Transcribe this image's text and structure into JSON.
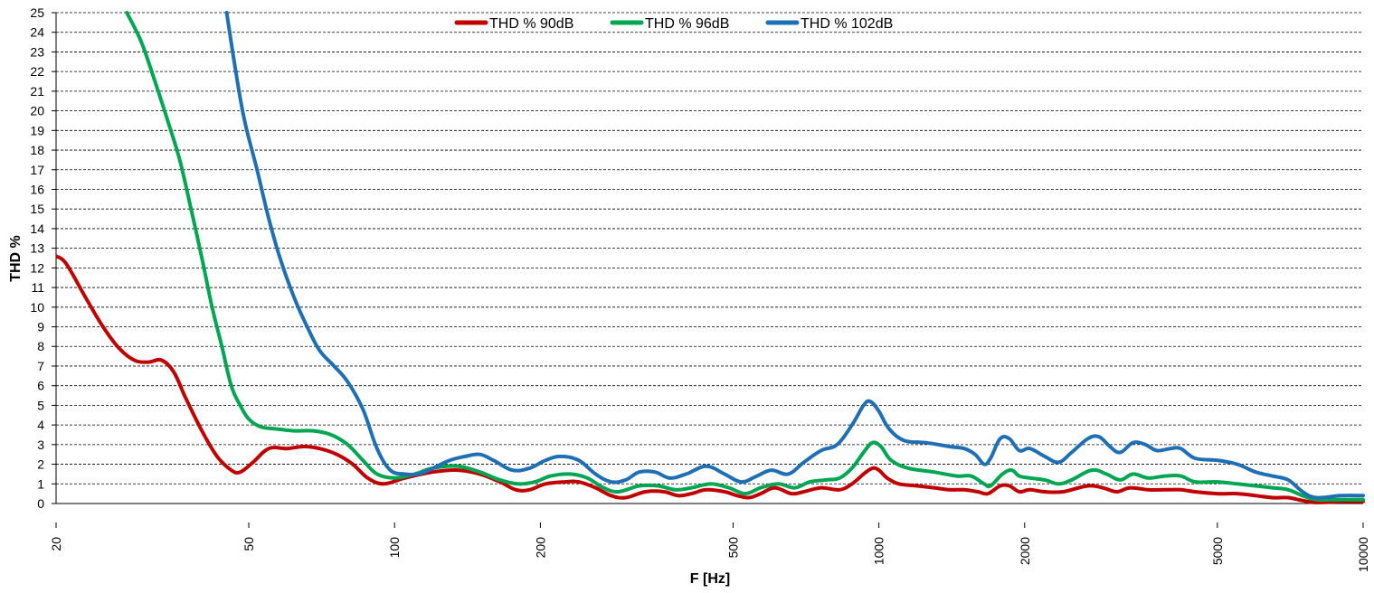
{
  "chart_data": {
    "type": "line",
    "xlabel": "F [Hz]",
    "ylabel": "THD %",
    "xscale": "log",
    "xlim": [
      20,
      10000
    ],
    "ylim": [
      0,
      25
    ],
    "grid": true,
    "legend_position": "top-center",
    "x_ticks": [
      20,
      50,
      100,
      200,
      500,
      1000,
      2000,
      5000,
      10000
    ],
    "y_ticks": [
      0,
      1,
      2,
      3,
      4,
      5,
      6,
      7,
      8,
      9,
      10,
      11,
      12,
      13,
      14,
      15,
      16,
      17,
      18,
      19,
      20,
      21,
      22,
      23,
      24,
      25
    ],
    "series": [
      {
        "name": "THD % 90dB",
        "color": "#c00000",
        "points": [
          [
            20,
            12.6
          ],
          [
            21,
            12.2
          ],
          [
            23,
            10.5
          ],
          [
            25,
            9.0
          ],
          [
            27,
            7.9
          ],
          [
            29,
            7.3
          ],
          [
            31,
            7.2
          ],
          [
            33,
            7.3
          ],
          [
            35,
            6.7
          ],
          [
            37,
            5.4
          ],
          [
            40,
            3.7
          ],
          [
            43,
            2.4
          ],
          [
            46,
            1.7
          ],
          [
            48,
            1.6
          ],
          [
            51,
            2.1
          ],
          [
            55,
            2.8
          ],
          [
            60,
            2.8
          ],
          [
            65,
            2.9
          ],
          [
            70,
            2.8
          ],
          [
            76,
            2.5
          ],
          [
            82,
            2.0
          ],
          [
            88,
            1.3
          ],
          [
            95,
            1.0
          ],
          [
            105,
            1.3
          ],
          [
            120,
            1.6
          ],
          [
            135,
            1.7
          ],
          [
            150,
            1.5
          ],
          [
            165,
            1.1
          ],
          [
            178,
            0.7
          ],
          [
            190,
            0.7
          ],
          [
            205,
            1.0
          ],
          [
            225,
            1.1
          ],
          [
            240,
            1.1
          ],
          [
            260,
            0.8
          ],
          [
            280,
            0.4
          ],
          [
            300,
            0.3
          ],
          [
            330,
            0.6
          ],
          [
            360,
            0.6
          ],
          [
            385,
            0.4
          ],
          [
            410,
            0.5
          ],
          [
            440,
            0.7
          ],
          [
            480,
            0.6
          ],
          [
            510,
            0.4
          ],
          [
            540,
            0.3
          ],
          [
            570,
            0.5
          ],
          [
            610,
            0.8
          ],
          [
            660,
            0.5
          ],
          [
            700,
            0.6
          ],
          [
            760,
            0.8
          ],
          [
            830,
            0.7
          ],
          [
            880,
            1.0
          ],
          [
            930,
            1.5
          ],
          [
            970,
            1.8
          ],
          [
            1000,
            1.7
          ],
          [
            1040,
            1.3
          ],
          [
            1100,
            1.0
          ],
          [
            1200,
            0.9
          ],
          [
            1300,
            0.8
          ],
          [
            1400,
            0.7
          ],
          [
            1500,
            0.7
          ],
          [
            1600,
            0.6
          ],
          [
            1680,
            0.5
          ],
          [
            1780,
            0.9
          ],
          [
            1860,
            0.9
          ],
          [
            1950,
            0.6
          ],
          [
            2050,
            0.7
          ],
          [
            2200,
            0.6
          ],
          [
            2400,
            0.6
          ],
          [
            2700,
            0.9
          ],
          [
            2900,
            0.8
          ],
          [
            3100,
            0.6
          ],
          [
            3300,
            0.8
          ],
          [
            3600,
            0.7
          ],
          [
            3900,
            0.7
          ],
          [
            4200,
            0.7
          ],
          [
            4500,
            0.6
          ],
          [
            5000,
            0.5
          ],
          [
            5500,
            0.5
          ],
          [
            6000,
            0.4
          ],
          [
            6500,
            0.3
          ],
          [
            7000,
            0.3
          ],
          [
            7500,
            0.15
          ],
          [
            8000,
            0.05
          ],
          [
            9000,
            0.1
          ],
          [
            10000,
            0.1
          ]
        ]
      },
      {
        "name": "THD % 96dB",
        "color": "#00a651",
        "points": [
          [
            28,
            25
          ],
          [
            30,
            23.5
          ],
          [
            32,
            21.5
          ],
          [
            34,
            19.5
          ],
          [
            36,
            17.5
          ],
          [
            38,
            15
          ],
          [
            40,
            12.5
          ],
          [
            42,
            10
          ],
          [
            44,
            8
          ],
          [
            46,
            6
          ],
          [
            48,
            5
          ],
          [
            50,
            4.3
          ],
          [
            53,
            3.9
          ],
          [
            57,
            3.8
          ],
          [
            62,
            3.7
          ],
          [
            68,
            3.7
          ],
          [
            74,
            3.5
          ],
          [
            80,
            3.0
          ],
          [
            86,
            2.2
          ],
          [
            92,
            1.5
          ],
          [
            100,
            1.3
          ],
          [
            110,
            1.5
          ],
          [
            120,
            1.8
          ],
          [
            135,
            1.9
          ],
          [
            150,
            1.6
          ],
          [
            165,
            1.2
          ],
          [
            180,
            1.0
          ],
          [
            195,
            1.1
          ],
          [
            210,
            1.4
          ],
          [
            230,
            1.5
          ],
          [
            250,
            1.3
          ],
          [
            270,
            0.8
          ],
          [
            290,
            0.6
          ],
          [
            320,
            0.9
          ],
          [
            350,
            0.9
          ],
          [
            380,
            0.7
          ],
          [
            410,
            0.8
          ],
          [
            450,
            1.0
          ],
          [
            490,
            0.8
          ],
          [
            530,
            0.5
          ],
          [
            570,
            0.8
          ],
          [
            620,
            1.0
          ],
          [
            670,
            0.8
          ],
          [
            720,
            1.1
          ],
          [
            780,
            1.2
          ],
          [
            830,
            1.3
          ],
          [
            880,
            1.8
          ],
          [
            930,
            2.6
          ],
          [
            970,
            3.1
          ],
          [
            1010,
            2.9
          ],
          [
            1060,
            2.2
          ],
          [
            1150,
            1.8
          ],
          [
            1300,
            1.6
          ],
          [
            1450,
            1.4
          ],
          [
            1550,
            1.4
          ],
          [
            1650,
            1.0
          ],
          [
            1700,
            0.9
          ],
          [
            1800,
            1.5
          ],
          [
            1880,
            1.7
          ],
          [
            1950,
            1.4
          ],
          [
            2050,
            1.3
          ],
          [
            2200,
            1.2
          ],
          [
            2350,
            1.0
          ],
          [
            2500,
            1.2
          ],
          [
            2750,
            1.7
          ],
          [
            2950,
            1.5
          ],
          [
            3150,
            1.2
          ],
          [
            3350,
            1.5
          ],
          [
            3600,
            1.3
          ],
          [
            3900,
            1.4
          ],
          [
            4200,
            1.4
          ],
          [
            4500,
            1.1
          ],
          [
            5000,
            1.1
          ],
          [
            5500,
            1.0
          ],
          [
            6000,
            0.9
          ],
          [
            6500,
            0.8
          ],
          [
            7000,
            0.7
          ],
          [
            7500,
            0.4
          ],
          [
            8000,
            0.2
          ],
          [
            9000,
            0.2
          ],
          [
            10000,
            0.2
          ]
        ]
      },
      {
        "name": "THD % 102dB",
        "color": "#1f6fb4",
        "points": [
          [
            45,
            25
          ],
          [
            47,
            22
          ],
          [
            49,
            19.5
          ],
          [
            52,
            17
          ],
          [
            55,
            14.5
          ],
          [
            58,
            12.5
          ],
          [
            62,
            10.5
          ],
          [
            66,
            9.0
          ],
          [
            70,
            7.8
          ],
          [
            75,
            7.0
          ],
          [
            80,
            6.2
          ],
          [
            86,
            4.8
          ],
          [
            92,
            2.8
          ],
          [
            98,
            1.7
          ],
          [
            105,
            1.5
          ],
          [
            112,
            1.5
          ],
          [
            120,
            1.8
          ],
          [
            130,
            2.2
          ],
          [
            140,
            2.4
          ],
          [
            150,
            2.5
          ],
          [
            160,
            2.2
          ],
          [
            175,
            1.7
          ],
          [
            190,
            1.8
          ],
          [
            205,
            2.2
          ],
          [
            220,
            2.4
          ],
          [
            240,
            2.2
          ],
          [
            260,
            1.5
          ],
          [
            280,
            1.1
          ],
          [
            300,
            1.2
          ],
          [
            320,
            1.6
          ],
          [
            345,
            1.6
          ],
          [
            370,
            1.3
          ],
          [
            400,
            1.5
          ],
          [
            440,
            1.9
          ],
          [
            480,
            1.5
          ],
          [
            520,
            1.1
          ],
          [
            560,
            1.4
          ],
          [
            600,
            1.7
          ],
          [
            650,
            1.5
          ],
          [
            700,
            2.1
          ],
          [
            760,
            2.7
          ],
          [
            820,
            3.0
          ],
          [
            880,
            4.0
          ],
          [
            930,
            5.0
          ],
          [
            960,
            5.2
          ],
          [
            1000,
            4.7
          ],
          [
            1050,
            3.8
          ],
          [
            1130,
            3.2
          ],
          [
            1250,
            3.1
          ],
          [
            1400,
            2.9
          ],
          [
            1500,
            2.8
          ],
          [
            1580,
            2.5
          ],
          [
            1650,
            2.0
          ],
          [
            1700,
            2.3
          ],
          [
            1780,
            3.3
          ],
          [
            1860,
            3.3
          ],
          [
            1950,
            2.7
          ],
          [
            2050,
            2.8
          ],
          [
            2200,
            2.4
          ],
          [
            2350,
            2.1
          ],
          [
            2500,
            2.6
          ],
          [
            2700,
            3.3
          ],
          [
            2850,
            3.4
          ],
          [
            3000,
            2.9
          ],
          [
            3150,
            2.6
          ],
          [
            3350,
            3.1
          ],
          [
            3550,
            3.0
          ],
          [
            3750,
            2.7
          ],
          [
            4000,
            2.8
          ],
          [
            4200,
            2.8
          ],
          [
            4500,
            2.3
          ],
          [
            5000,
            2.2
          ],
          [
            5500,
            2.0
          ],
          [
            6000,
            1.6
          ],
          [
            6500,
            1.4
          ],
          [
            7000,
            1.2
          ],
          [
            7500,
            0.6
          ],
          [
            8000,
            0.3
          ],
          [
            9000,
            0.4
          ],
          [
            10000,
            0.4
          ]
        ]
      }
    ]
  }
}
